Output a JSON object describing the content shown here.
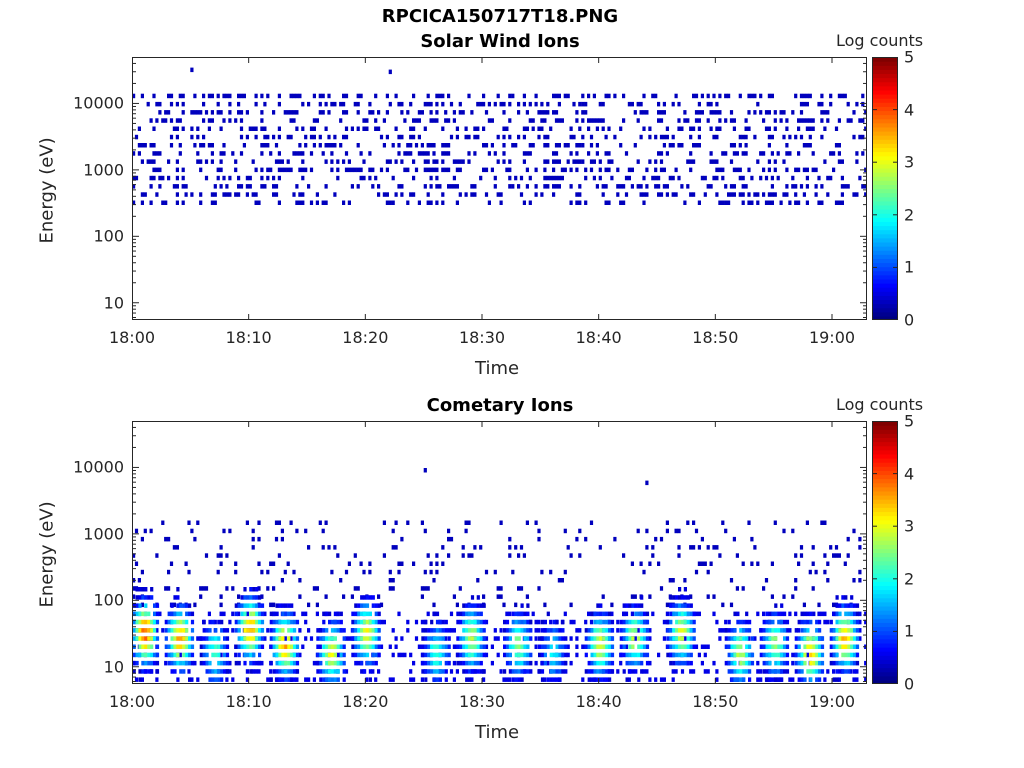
{
  "figure": {
    "title": "RPCICA150717T18.PNG"
  },
  "colormap": {
    "type": "jet",
    "label": "Log counts",
    "range": [
      0,
      5
    ],
    "ticks": [
      "0",
      "1",
      "2",
      "3",
      "4",
      "5"
    ]
  },
  "chart_data": [
    {
      "type": "heatmap",
      "title": "Solar Wind Ions",
      "xlabel": "Time",
      "ylabel": "Energy (eV)",
      "x_range": [
        "18:00",
        "19:03"
      ],
      "x_ticks": [
        "18:00",
        "18:10",
        "18:20",
        "18:30",
        "18:40",
        "18:50",
        "19:00"
      ],
      "y_scale": "log",
      "ylim": [
        5.5,
        50000
      ],
      "y_ticks": [
        "10",
        "100",
        "1000",
        "10000"
      ],
      "grid": false,
      "populations": [
        {
          "name": "scattered solar wind counts",
          "time_start": "18:00",
          "time_end": "19:03",
          "energy_min": 300,
          "energy_max": 15000,
          "log_counts": 0.3
        }
      ],
      "outliers": [
        {
          "time": "18:05",
          "energy": 30000,
          "log_counts": 0.3
        },
        {
          "time": "18:22",
          "energy": 28000,
          "log_counts": 0.3
        }
      ]
    },
    {
      "type": "heatmap",
      "title": "Cometary Ions",
      "xlabel": "Time",
      "ylabel": "Energy (eV)",
      "x_range": [
        "18:00",
        "19:03"
      ],
      "x_ticks": [
        "18:00",
        "18:10",
        "18:20",
        "18:30",
        "18:40",
        "18:50",
        "19:00"
      ],
      "y_scale": "log",
      "ylim": [
        5.5,
        50000
      ],
      "y_ticks": [
        "10",
        "100",
        "1000",
        "10000"
      ],
      "grid": false,
      "populations": [
        {
          "name": "sparse high-energy counts",
          "time_start": "18:00",
          "time_end": "19:03",
          "energy_min": 80,
          "energy_max": 1500,
          "log_counts": 0.3
        },
        {
          "name": "low-energy background",
          "time_start": "18:00",
          "time_end": "19:03",
          "energy_min": 6,
          "energy_max": 60,
          "log_counts": 0.5
        }
      ],
      "bursts": [
        {
          "time": "18:01",
          "peak_log_counts": 3.9,
          "energy_peak": 30
        },
        {
          "time": "18:04",
          "peak_log_counts": 3.6,
          "energy_peak": 25
        },
        {
          "time": "18:07",
          "peak_log_counts": 2.2,
          "energy_peak": 15
        },
        {
          "time": "18:10",
          "peak_log_counts": 3.6,
          "energy_peak": 35
        },
        {
          "time": "18:13",
          "peak_log_counts": 3.6,
          "energy_peak": 20
        },
        {
          "time": "18:17",
          "peak_log_counts": 3.0,
          "energy_peak": 15
        },
        {
          "time": "18:20",
          "peak_log_counts": 3.1,
          "energy_peak": 30
        },
        {
          "time": "18:26",
          "peak_log_counts": 2.2,
          "energy_peak": 15
        },
        {
          "time": "18:29",
          "peak_log_counts": 2.8,
          "energy_peak": 25
        },
        {
          "time": "18:33",
          "peak_log_counts": 2.6,
          "energy_peak": 20
        },
        {
          "time": "18:36",
          "peak_log_counts": 1.8,
          "energy_peak": 15
        },
        {
          "time": "18:40",
          "peak_log_counts": 3.0,
          "energy_peak": 20
        },
        {
          "time": "18:43",
          "peak_log_counts": 2.8,
          "energy_peak": 25
        },
        {
          "time": "18:47",
          "peak_log_counts": 3.0,
          "energy_peak": 30
        },
        {
          "time": "18:52",
          "peak_log_counts": 2.8,
          "energy_peak": 15
        },
        {
          "time": "18:55",
          "peak_log_counts": 2.6,
          "energy_peak": 20
        },
        {
          "time": "18:58",
          "peak_log_counts": 3.4,
          "energy_peak": 15
        },
        {
          "time": "19:01",
          "peak_log_counts": 3.5,
          "energy_peak": 25
        }
      ],
      "outliers": [
        {
          "time": "18:25",
          "energy": 8500,
          "log_counts": 0.3
        },
        {
          "time": "18:44",
          "energy": 5500,
          "log_counts": 0.3
        }
      ]
    }
  ]
}
